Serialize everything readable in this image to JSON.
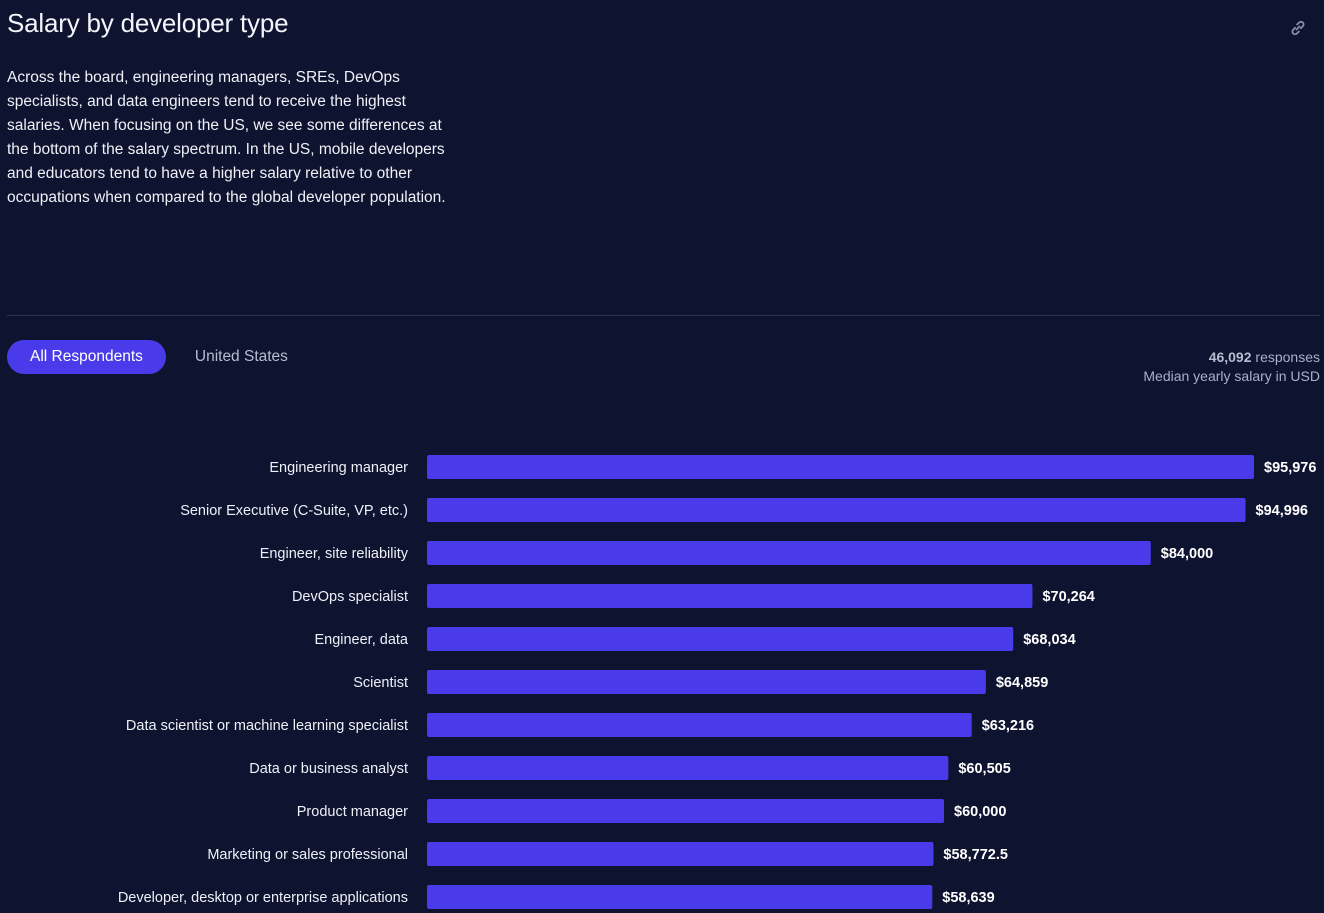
{
  "header": {
    "title": "Salary by developer type",
    "link_icon": "link-icon"
  },
  "description": "Across the board, engineering managers, SREs, DevOps specialists, and data engineers tend to receive the highest salaries. When focusing on the US, we see some differences at the bottom of the salary spectrum. In the US, mobile developers and educators tend to have a higher salary relative to other occupations when compared to the global developer population.",
  "tabs": [
    {
      "label": "All Respondents",
      "active": true
    },
    {
      "label": "United States",
      "active": false
    }
  ],
  "meta": {
    "responses_count": "46,092",
    "responses_suffix": " responses",
    "caption": "Median yearly salary in USD"
  },
  "colors": {
    "background": "#0e1330",
    "bar": "#4a3bea",
    "active_tab": "#4a3bea"
  },
  "chart_data": {
    "type": "bar",
    "orientation": "horizontal",
    "categories": [
      "Engineering manager",
      "Senior Executive (C-Suite, VP, etc.)",
      "Engineer, site reliability",
      "DevOps specialist",
      "Engineer, data",
      "Scientist",
      "Data scientist or machine learning specialist",
      "Data or business analyst",
      "Product manager",
      "Marketing or sales professional",
      "Developer, desktop or enterprise applications"
    ],
    "values": [
      95976,
      94996,
      84000,
      70264,
      68034,
      64859,
      63216,
      60505,
      60000,
      58772.5,
      58639
    ],
    "value_labels": [
      "$95,976",
      "$94,996",
      "$84,000",
      "$70,264",
      "$68,034",
      "$64,859",
      "$63,216",
      "$60,505",
      "$60,000",
      "$58,772.5",
      "$58,639"
    ],
    "xlim": [
      0,
      95976
    ],
    "grid": false
  }
}
